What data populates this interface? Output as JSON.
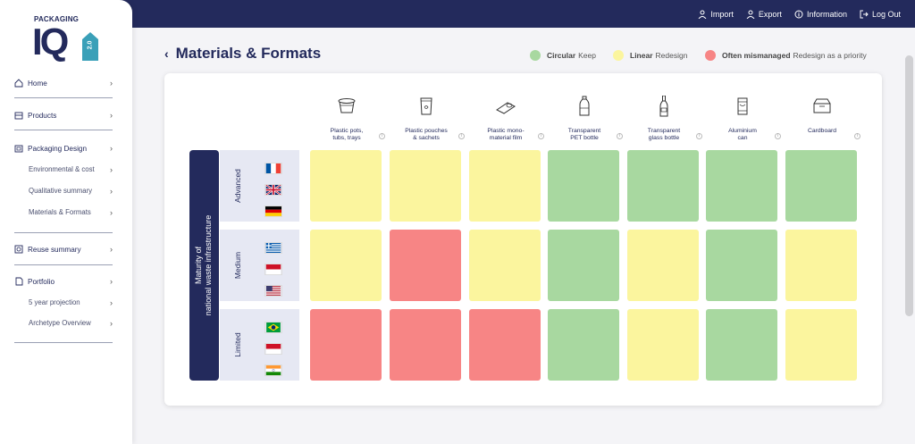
{
  "topbar": {
    "items": [
      {
        "label": "Import",
        "icon": "import-icon"
      },
      {
        "label": "Export",
        "icon": "export-icon"
      },
      {
        "label": "Information",
        "icon": "info-icon"
      },
      {
        "label": "Log Out",
        "icon": "logout-icon"
      }
    ]
  },
  "logo": {
    "top": "PACKAGING",
    "main": "IQ",
    "version": "2.0"
  },
  "sidebar": {
    "items": [
      {
        "label": "Home",
        "icon": "home-icon"
      },
      {
        "label": "Products",
        "icon": "products-icon"
      },
      {
        "label": "Packaging Design",
        "icon": "packaging-design-icon"
      },
      {
        "label": "Environmental & cost"
      },
      {
        "label": "Qualitative summary"
      },
      {
        "label": "Materials & Formats"
      },
      {
        "label": "Reuse summary",
        "icon": "reuse-icon"
      },
      {
        "label": "Portfolio",
        "icon": "portfolio-icon"
      },
      {
        "label": "5 year projection"
      },
      {
        "label": "Archetype Overview"
      }
    ]
  },
  "page": {
    "title": "Materials & Formats"
  },
  "legend": [
    {
      "bold": "Circular",
      "text": "Keep",
      "color": "#a8d8a0"
    },
    {
      "bold": "Linear",
      "text": "Redesign",
      "color": "#fbf59e"
    },
    {
      "bold": "Often mismanaged",
      "text": "Redesign as a priority",
      "color": "#f78585"
    }
  ],
  "matrix": {
    "axis_label_1": "Maturity of",
    "axis_label_2": "national waste infrastructure",
    "columns": [
      {
        "line1": "Plastic pots,",
        "line2": "tubs, trays",
        "icon": "plastic-pot-icon"
      },
      {
        "line1": "Plastic pouches",
        "line2": "& sachets",
        "icon": "pouch-icon"
      },
      {
        "line1": "Plastic mono-",
        "line2": "material film",
        "icon": "film-roll-icon"
      },
      {
        "line1": "Transparent",
        "line2": "PET bottle",
        "icon": "pet-bottle-icon"
      },
      {
        "line1": "Transparent",
        "line2": "glass bottle",
        "icon": "glass-bottle-icon"
      },
      {
        "line1": "Aluminium",
        "line2": "can",
        "icon": "aluminium-can-icon"
      },
      {
        "line1": "Cardboard",
        "line2": "",
        "icon": "cardboard-box-icon"
      }
    ],
    "rows": [
      {
        "label": "Advanced",
        "flags": [
          "france-flag-icon",
          "uk-flag-icon",
          "germany-flag-icon"
        ],
        "cells": [
          "linear",
          "linear",
          "linear",
          "circular",
          "circular",
          "circular",
          "circular"
        ]
      },
      {
        "label": "Medium",
        "flags": [
          "greece-flag-icon",
          "indonesia-flag-icon",
          "usa-flag-icon"
        ],
        "cells": [
          "linear",
          "mismanaged",
          "linear",
          "circular",
          "linear",
          "circular",
          "linear"
        ]
      },
      {
        "label": "Limited",
        "flags": [
          "brazil-flag-icon",
          "indonesia-flag-icon",
          "india-flag-icon"
        ],
        "cells": [
          "mismanaged",
          "mismanaged",
          "mismanaged",
          "circular",
          "linear",
          "circular",
          "linear"
        ]
      }
    ]
  },
  "colors": {
    "navy": "#232a5c",
    "circular": "#a8d8a0",
    "linear": "#fbf59e",
    "mismanaged": "#f78585"
  }
}
